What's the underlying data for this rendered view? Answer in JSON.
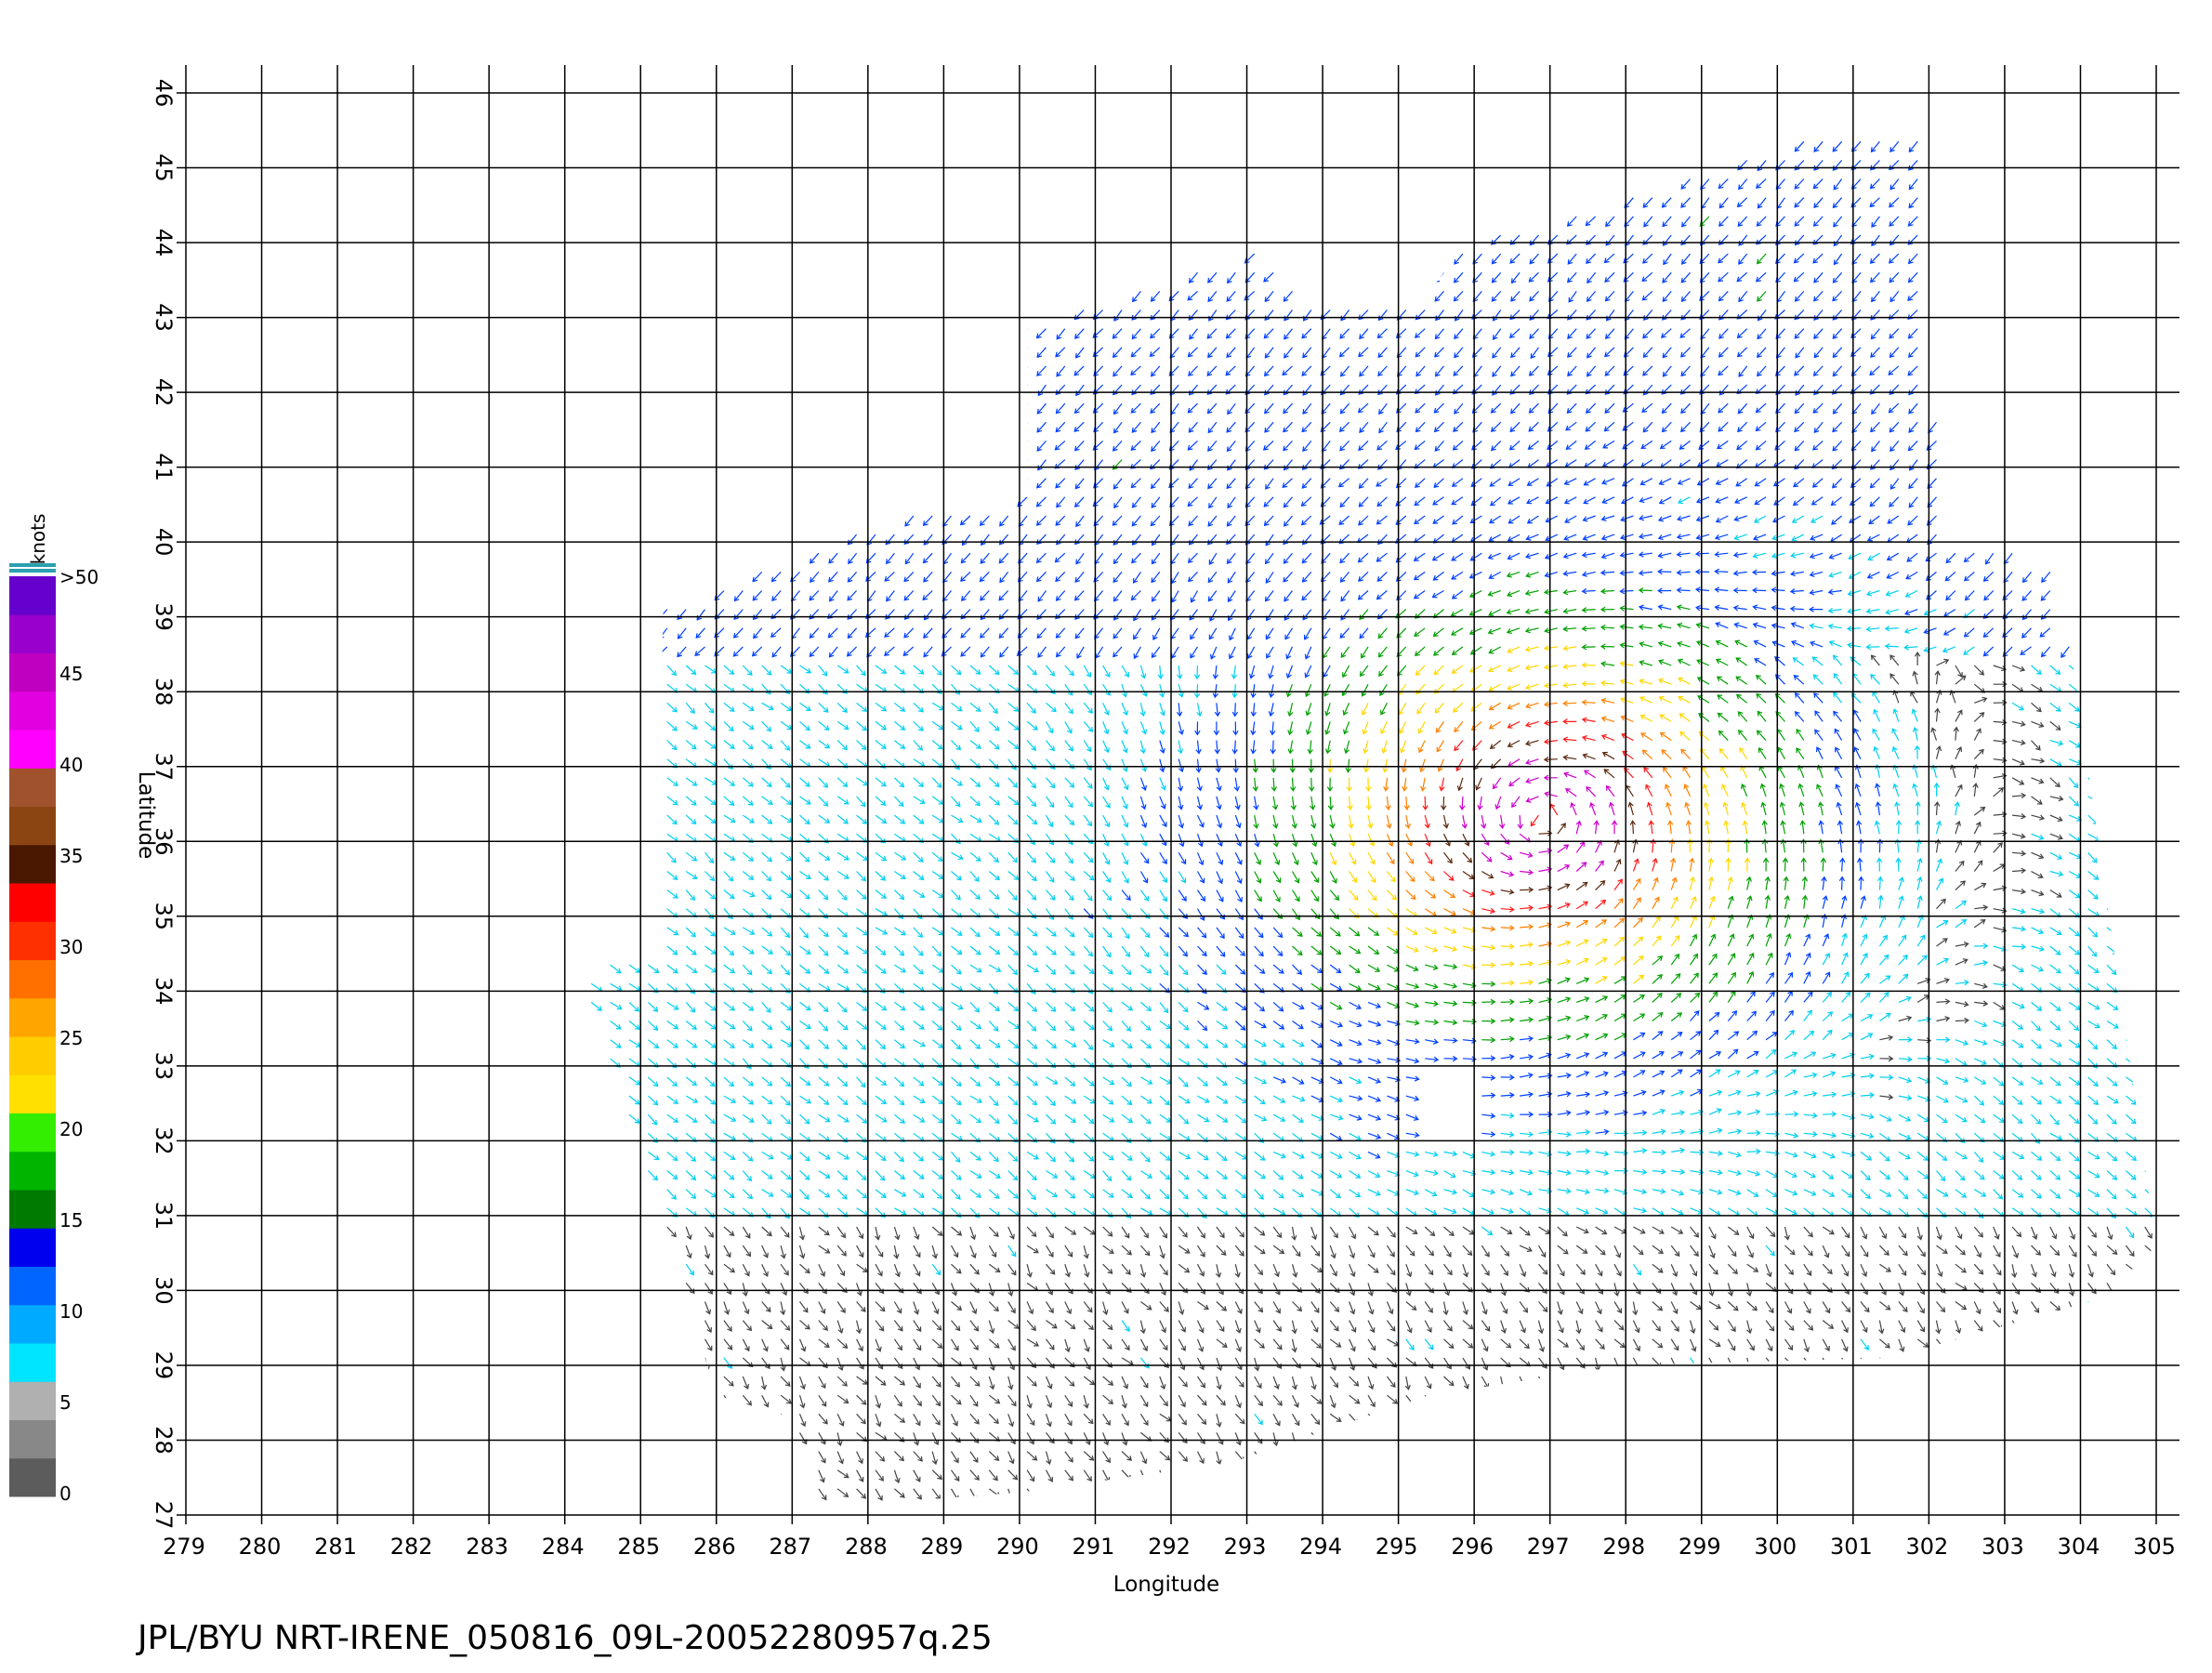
{
  "plot": {
    "xlabel": "Longitude",
    "ylabel": "Latitude",
    "lon_range": [
      279,
      305
    ],
    "lat_range": [
      27,
      46
    ],
    "lon_ticks": [
      "279",
      "280",
      "281",
      "282",
      "283",
      "284",
      "285",
      "286",
      "287",
      "288",
      "289",
      "290",
      "291",
      "292",
      "293",
      "294",
      "295",
      "296",
      "297",
      "298",
      "299",
      "300",
      "301",
      "302",
      "303",
      "304",
      "305"
    ],
    "lat_ticks": [
      "27",
      "28",
      "29",
      "30",
      "31",
      "32",
      "33",
      "34",
      "35",
      "36",
      "37",
      "38",
      "39",
      "40",
      "41",
      "42",
      "43",
      "44",
      "45",
      "46"
    ],
    "grid": true
  },
  "colorbar": {
    "title": "knots",
    "labels": [
      "0",
      "5",
      "10",
      "15",
      "20",
      "25",
      "30",
      "35",
      "40",
      "45",
      ">50"
    ],
    "segments": [
      "#5c5c5c",
      "#888888",
      "#b0b0b0",
      "#00e5ff",
      "#00aaff",
      "#0066ff",
      "#0000ee",
      "#007a00",
      "#00b400",
      "#33ee00",
      "#ffe000",
      "#ffcc00",
      "#ffa500",
      "#ff7000",
      "#ff3000",
      "#ff0000",
      "#4a1800",
      "#8b4513",
      "#a0522d",
      "#ff00ff",
      "#e000e0",
      "#c000c0",
      "#9900cc",
      "#6600cc"
    ]
  },
  "chart_data": {
    "type": "vector-field",
    "units": "knots",
    "storm_center": {
      "lon": 296.9,
      "lat": 36.3
    },
    "max_speed_label": ">50",
    "speed_bins": [
      {
        "min": 0,
        "max": 5,
        "color": "#444444"
      },
      {
        "min": 5,
        "max": 10,
        "color": "#00d0f0"
      },
      {
        "min": 10,
        "max": 15,
        "color": "#0040ff"
      },
      {
        "min": 15,
        "max": 20,
        "color": "#00a000"
      },
      {
        "min": 20,
        "max": 25,
        "color": "#ffd700"
      },
      {
        "min": 25,
        "max": 30,
        "color": "#ff8000"
      },
      {
        "min": 30,
        "max": 35,
        "color": "#ff1a1a"
      },
      {
        "min": 35,
        "max": 40,
        "color": "#5a2a10"
      },
      {
        "min": 40,
        "max": 50,
        "color": "#cc00cc"
      }
    ],
    "swath_polygon": [
      [
        284.2,
        34.3
      ],
      [
        285.2,
        34.6
      ],
      [
        285.3,
        39.1
      ],
      [
        288.8,
        40.5
      ],
      [
        290.1,
        40.6
      ],
      [
        290.1,
        42.9
      ],
      [
        293.1,
        43.9
      ],
      [
        294.0,
        43.1
      ],
      [
        295.3,
        43.2
      ],
      [
        295.9,
        44.0
      ],
      [
        299.0,
        44.9
      ],
      [
        300.9,
        45.6
      ],
      [
        301.9,
        45.5
      ],
      [
        302.2,
        40.0
      ],
      [
        303.7,
        39.8
      ],
      [
        305.0,
        30.6
      ],
      [
        304.3,
        29.9
      ],
      [
        301.5,
        29.1
      ],
      [
        298.0,
        29.0
      ],
      [
        295.4,
        28.6
      ],
      [
        292.8,
        27.7
      ],
      [
        290.0,
        27.3
      ],
      [
        287.4,
        27.1
      ],
      [
        287.0,
        28.3
      ],
      [
        286.0,
        28.6
      ],
      [
        285.4,
        30.6
      ]
    ],
    "swath_gap": {
      "lon": [
        295.1,
        296.0
      ],
      "lat": [
        32.0,
        32.9
      ]
    }
  },
  "footer": {
    "text": "JPL/BYU  NRT-IRENE_050816_09L-20052280957q.25"
  }
}
